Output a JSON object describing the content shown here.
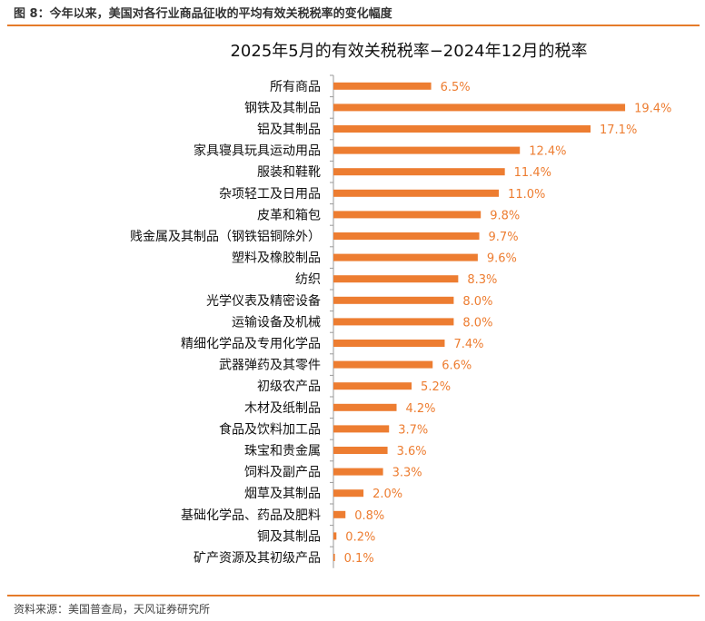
{
  "header": {
    "figure_title": "图 8：今年以来，美国对各行业商品征收的平均有效关税税率的变化幅度"
  },
  "footer": {
    "source": "资料来源：美国普查局，天风证券研究所"
  },
  "colors": {
    "bar": "#ed7d31",
    "value_label": "#ed7d31",
    "rule": "#e57b2a",
    "axis": "#9a9a9a"
  },
  "chart_data": {
    "type": "bar",
    "orientation": "horizontal",
    "title": "2025年5月的有效关税税率−2024年12月的税率",
    "xlabel": "",
    "ylabel": "",
    "xlim": [
      0,
      20
    ],
    "grid": false,
    "legend": "none",
    "categories": [
      "所有商品",
      "钢铁及其制品",
      "铝及其制品",
      "家具寝具玩具运动用品",
      "服装和鞋靴",
      "杂项轻工及日用品",
      "皮革和箱包",
      "贱金属及其制品（钢铁铝铜除外）",
      "塑料及橡胶制品",
      "纺织",
      "光学仪表及精密设备",
      "运输设备及机械",
      "精细化学品及专用化学品",
      "武器弹药及其零件",
      "初级农产品",
      "木材及纸制品",
      "食品及饮料加工品",
      "珠宝和贵金属",
      "饲料及副产品",
      "烟草及其制品",
      "基础化学品、药品及肥料",
      "铜及其制品",
      "矿产资源及其初级产品"
    ],
    "values": [
      6.5,
      19.4,
      17.1,
      12.4,
      11.4,
      11.0,
      9.8,
      9.7,
      9.6,
      8.3,
      8.0,
      8.0,
      7.4,
      6.6,
      5.2,
      4.2,
      3.7,
      3.6,
      3.3,
      2.0,
      0.8,
      0.2,
      0.1
    ],
    "labels": [
      "6.5%",
      "19.4%",
      "17.1%",
      "12.4%",
      "11.4%",
      "11.0%",
      "9.8%",
      "9.7%",
      "9.6%",
      "8.3%",
      "8.0%",
      "8.0%",
      "7.4%",
      "6.6%",
      "5.2%",
      "4.2%",
      "3.7%",
      "3.6%",
      "3.3%",
      "2.0%",
      "0.8%",
      "0.2%",
      "0.1%"
    ]
  }
}
